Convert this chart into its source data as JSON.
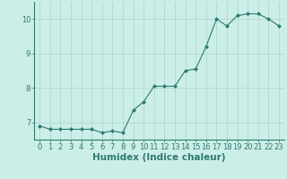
{
  "x": [
    0,
    1,
    2,
    3,
    4,
    5,
    6,
    7,
    8,
    9,
    10,
    11,
    12,
    13,
    14,
    15,
    16,
    17,
    18,
    19,
    20,
    21,
    22,
    23
  ],
  "y": [
    6.9,
    6.8,
    6.8,
    6.8,
    6.8,
    6.8,
    6.7,
    6.75,
    6.7,
    7.35,
    7.6,
    8.05,
    8.05,
    8.05,
    8.5,
    8.55,
    9.2,
    10.0,
    9.8,
    10.1,
    10.15,
    10.15,
    10.0,
    9.8
  ],
  "line_color": "#2d7a6e",
  "marker": "D",
  "marker_size": 2.0,
  "bg_color": "#cceee8",
  "grid_color": "#aad4cc",
  "xlabel": "Humidex (Indice chaleur)",
  "ylim": [
    6.5,
    10.5
  ],
  "xlim": [
    -0.5,
    23.5
  ],
  "yticks": [
    7,
    8,
    9,
    10
  ],
  "xticks": [
    0,
    1,
    2,
    3,
    4,
    5,
    6,
    7,
    8,
    9,
    10,
    11,
    12,
    13,
    14,
    15,
    16,
    17,
    18,
    19,
    20,
    21,
    22,
    23
  ],
  "tick_color": "#2d7a6e",
  "label_fontsize": 7.5,
  "tick_fontsize": 6.0,
  "linewidth": 0.8
}
